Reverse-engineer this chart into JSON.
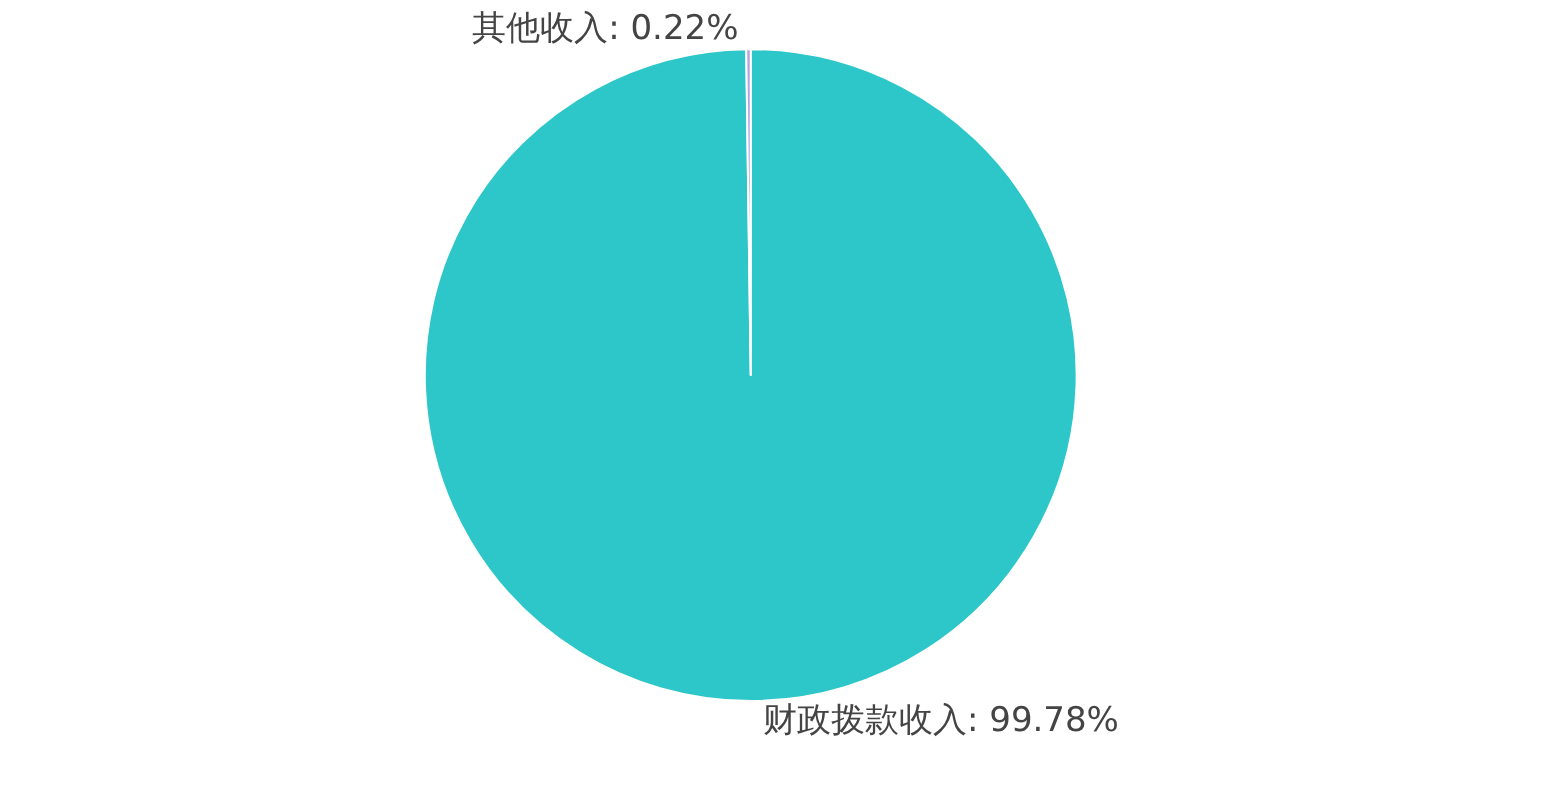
{
  "chart_data": {
    "type": "pie",
    "categories": [
      "财政拨款收入",
      "其他收入"
    ],
    "values": [
      99.78,
      0.22
    ],
    "colors": [
      "#2ec7c9",
      "#b6a2de"
    ],
    "value_labels": [
      "99.78%",
      "0.22%"
    ],
    "legend": false
  }
}
